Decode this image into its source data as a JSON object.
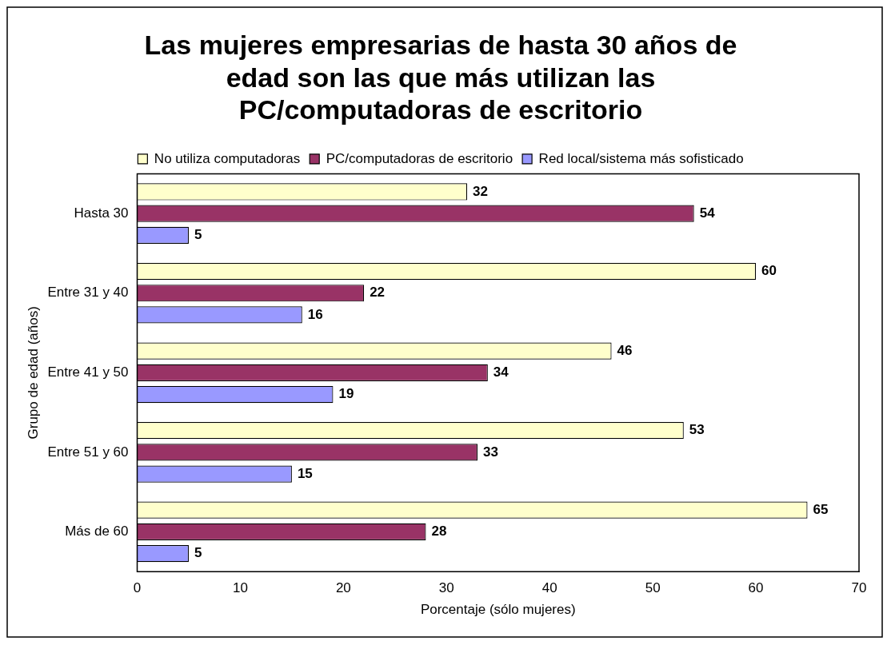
{
  "chart_data": {
    "type": "bar",
    "orientation": "horizontal",
    "title": "Las mujeres empresarias de hasta 30 años de edad son las que más utilizan las PC/computadoras de escritorio",
    "xlabel": "Porcentaje (sólo mujeres)",
    "ylabel": "Grupo de edad (años)",
    "categories": [
      "Hasta 30",
      "Entre 31 y 40",
      "Entre 41 y 50",
      "Entre 51 y 60",
      "Más de 60"
    ],
    "series": [
      {
        "name": "Red local/sistema más sofisticado",
        "color": "#9999ff",
        "values": [
          5,
          16,
          19,
          15,
          5
        ]
      },
      {
        "name": "PC/computadoras de escritorio",
        "color": "#993366",
        "values": [
          54,
          22,
          34,
          33,
          28
        ]
      },
      {
        "name": "No utiliza computadoras",
        "color": "#ffffcc",
        "values": [
          32,
          60,
          46,
          53,
          65
        ]
      }
    ],
    "xlim": [
      0,
      70
    ],
    "xticks": [
      0,
      10,
      20,
      30,
      40,
      50,
      60,
      70
    ],
    "grid": false,
    "legend": "top",
    "data_labels": true
  }
}
